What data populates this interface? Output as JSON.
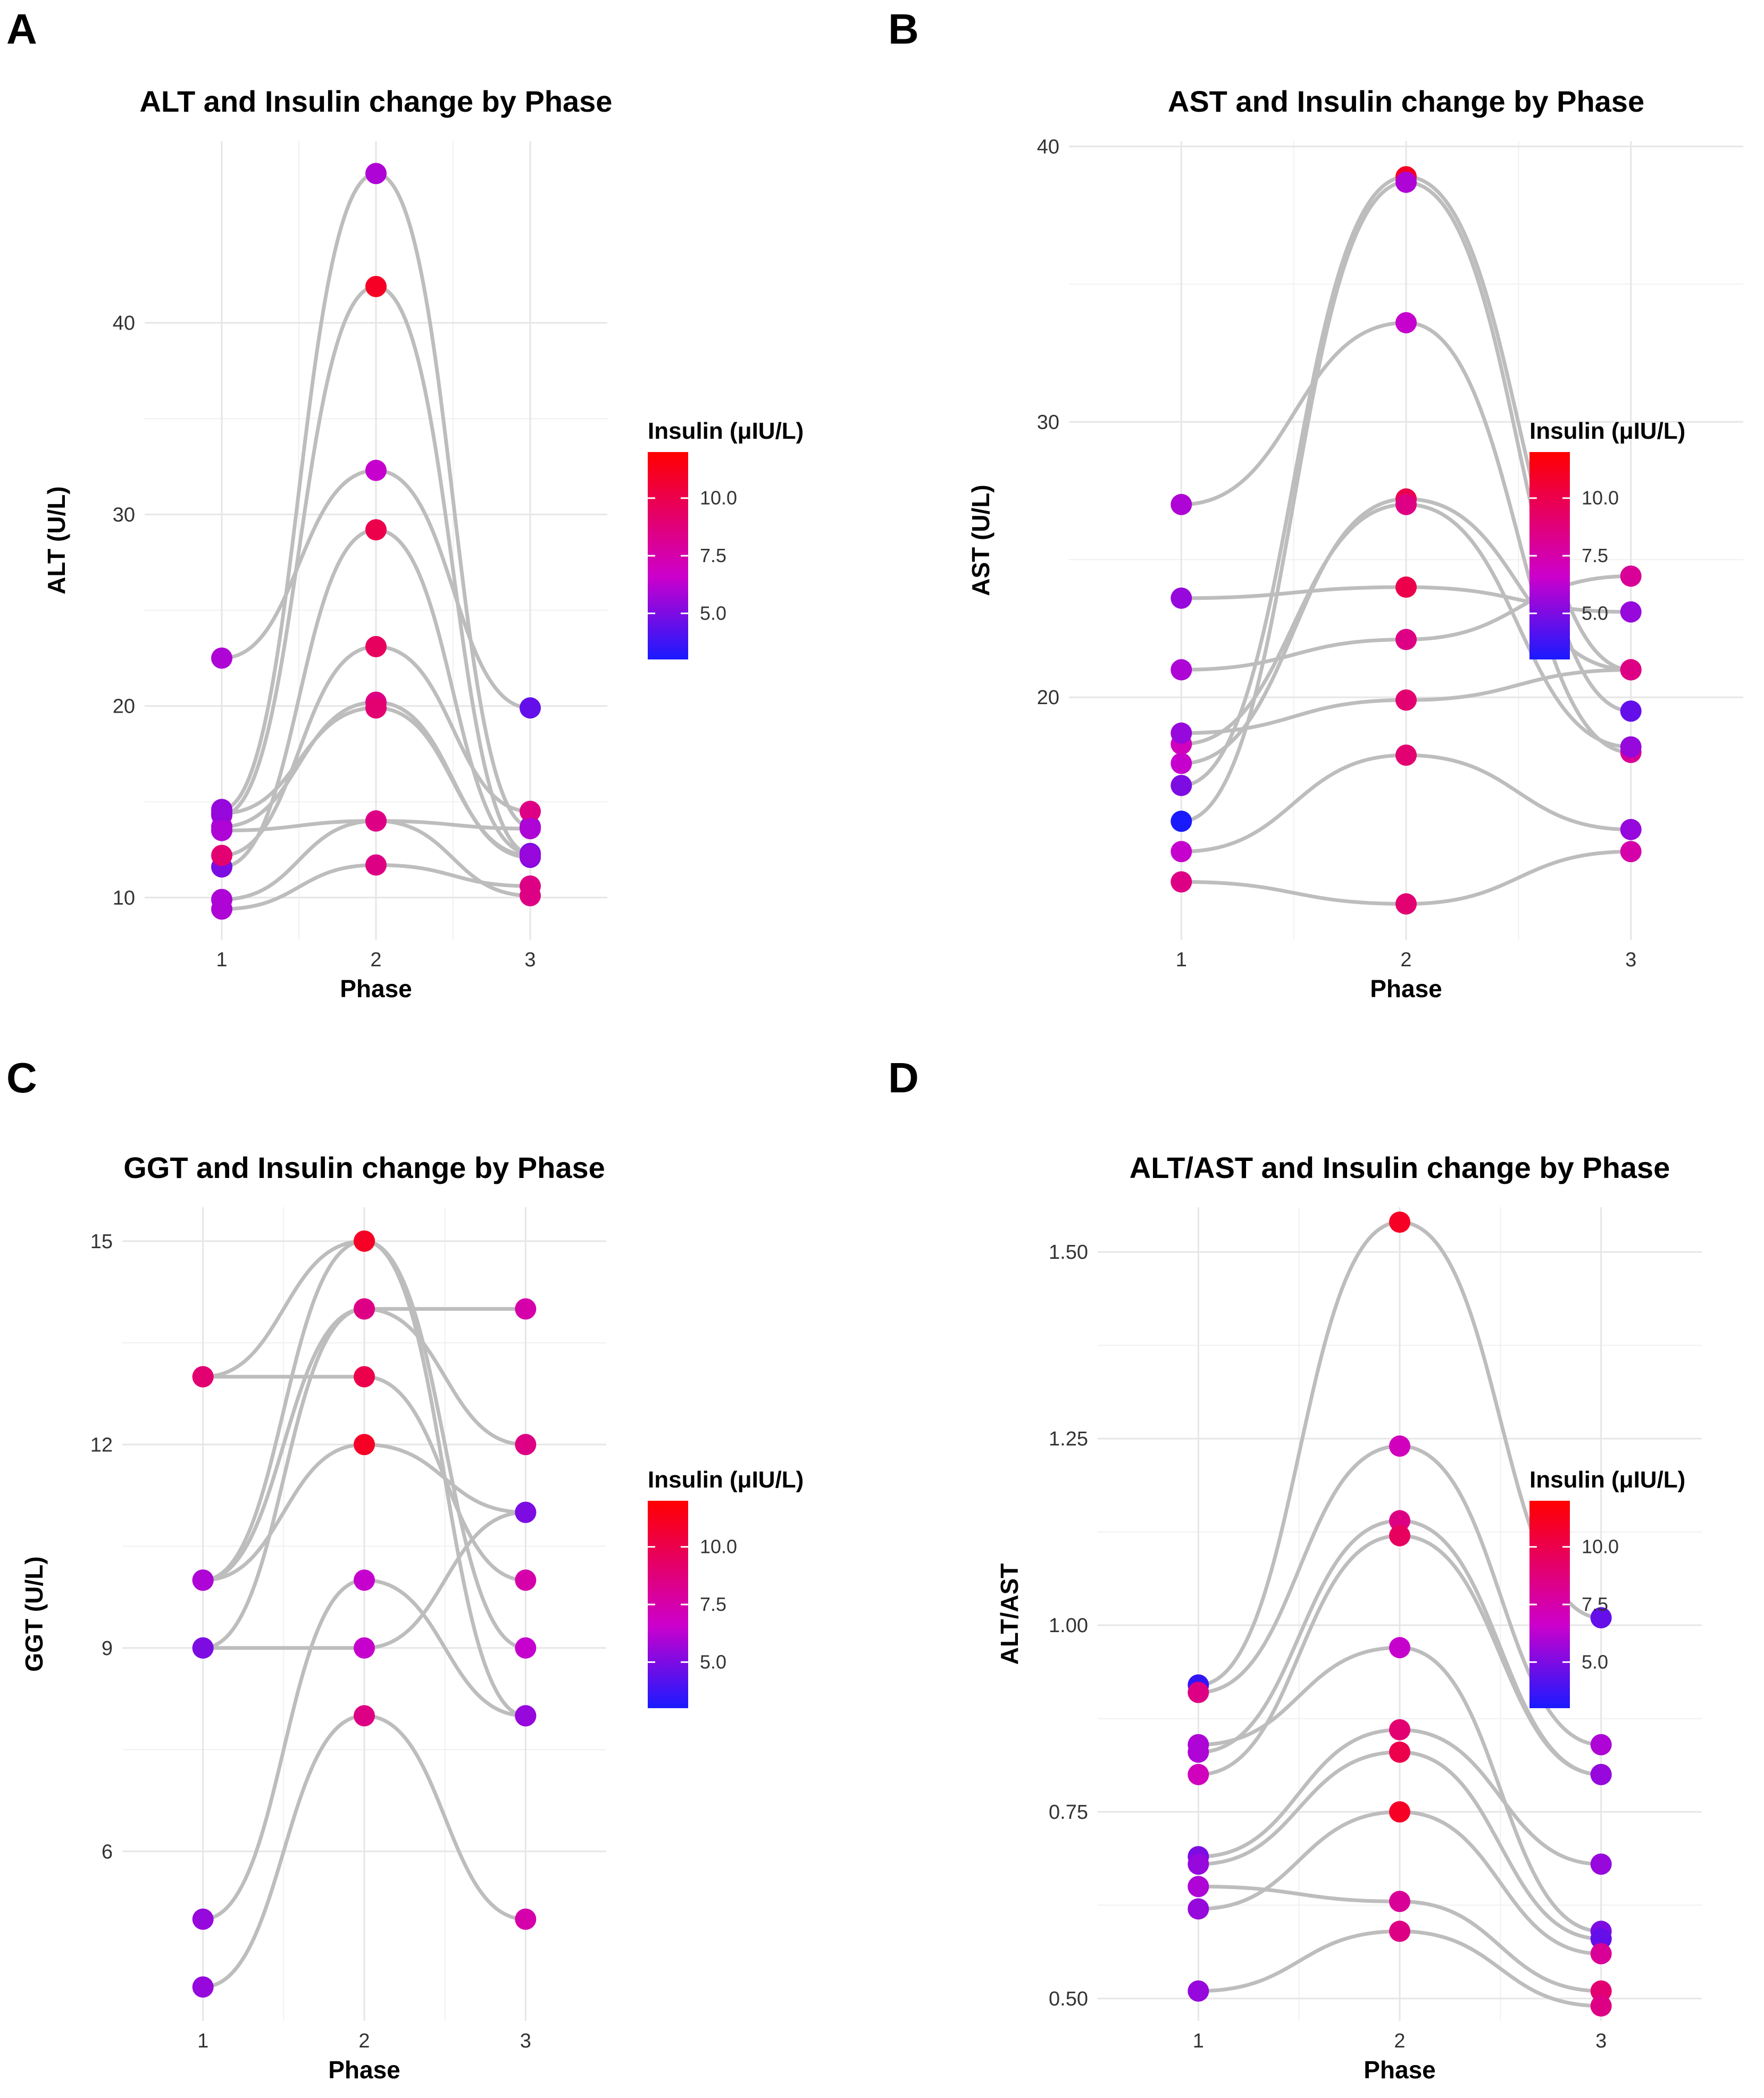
{
  "chart_data": [
    {
      "panel_label": "A",
      "type": "line",
      "title": "ALT and Insulin change by Phase",
      "xlabel": "Phase",
      "ylabel": "ALT (U/L)",
      "categories": [
        "1",
        "2",
        "3"
      ],
      "ylim": [
        7.8,
        49.5
      ],
      "yticks": [
        10,
        20,
        30,
        40
      ],
      "ytick_labels": [
        "10",
        "20",
        "30",
        "40"
      ],
      "legend": {
        "title": "Insulin (μIU/L)",
        "ticks": [
          "5.0",
          "7.5",
          "10.0"
        ],
        "tick_values": [
          5.0,
          7.5,
          10.0
        ],
        "range": [
          3.0,
          12.0
        ],
        "low_color": "#1a1aff",
        "mid_color": "#cc00cc",
        "high_color": "#ff0000"
      },
      "series": [
        {
          "values": [
            14.6,
            47.8,
            13.7
          ],
          "insulin": [
            5.5,
            6.0,
            5.5
          ]
        },
        {
          "values": [
            14.3,
            41.9,
            12.3
          ],
          "insulin": [
            6.0,
            11.0,
            5.5
          ]
        },
        {
          "values": [
            22.5,
            32.3,
            19.9
          ],
          "insulin": [
            6.0,
            6.5,
            4.5
          ]
        },
        {
          "values": [
            11.6,
            29.2,
            12.3
          ],
          "insulin": [
            5.0,
            10.0,
            5.0
          ]
        },
        {
          "values": [
            12.2,
            23.1,
            14.5
          ],
          "insulin": [
            9.0,
            9.5,
            8.5
          ]
        },
        {
          "values": [
            13.7,
            20.2,
            12.1
          ],
          "insulin": [
            6.0,
            8.5,
            5.0
          ]
        },
        {
          "values": [
            14.4,
            19.9,
            12.2
          ],
          "insulin": [
            5.5,
            9.0,
            5.5
          ]
        },
        {
          "values": [
            13.5,
            14.0,
            13.6
          ],
          "insulin": [
            6.0,
            8.5,
            6.0
          ]
        },
        {
          "values": [
            9.9,
            14.0,
            10.1
          ],
          "insulin": [
            6.0,
            8.5,
            8.5
          ]
        },
        {
          "values": [
            9.4,
            11.7,
            10.6
          ],
          "insulin": [
            6.0,
            8.5,
            8.5
          ]
        }
      ]
    },
    {
      "panel_label": "B",
      "type": "line",
      "title": "AST and Insulin change by Phase",
      "xlabel": "Phase",
      "ylabel": "AST (U/L)",
      "categories": [
        "1",
        "2",
        "3"
      ],
      "ylim": [
        11.2,
        40.2
      ],
      "yticks": [
        20,
        30,
        40
      ],
      "ytick_labels": [
        "20",
        "30",
        "40"
      ],
      "legend": {
        "title": "Insulin (μIU/L)",
        "ticks": [
          "5.0",
          "7.5",
          "10.0"
        ],
        "tick_values": [
          5.0,
          7.5,
          10.0
        ],
        "range": [
          3.0,
          12.0
        ],
        "low_color": "#1a1aff",
        "mid_color": "#cc00cc",
        "high_color": "#ff0000"
      },
      "series": [
        {
          "values": [
            16.8,
            38.9,
            21.0
          ],
          "insulin": [
            5.0,
            11.0,
            8.0
          ]
        },
        {
          "values": [
            15.5,
            38.7,
            19.5
          ],
          "insulin": [
            3.0,
            6.0,
            4.5
          ]
        },
        {
          "values": [
            27.0,
            33.6,
            18.0
          ],
          "insulin": [
            6.0,
            6.5,
            8.0
          ]
        },
        {
          "values": [
            17.6,
            27.2,
            21.0
          ],
          "insulin": [
            6.5,
            10.0,
            8.0
          ]
        },
        {
          "values": [
            18.3,
            27.0,
            18.2
          ],
          "insulin": [
            7.0,
            8.5,
            5.5
          ]
        },
        {
          "values": [
            21.0,
            22.1,
            24.4
          ],
          "insulin": [
            6.0,
            8.5,
            8.0
          ]
        },
        {
          "values": [
            23.6,
            24.0,
            23.1
          ],
          "insulin": [
            5.5,
            10.0,
            5.5
          ]
        },
        {
          "values": [
            18.7,
            19.9,
            21.0
          ],
          "insulin": [
            5.5,
            9.0,
            8.5
          ]
        },
        {
          "values": [
            14.4,
            17.9,
            15.2
          ],
          "insulin": [
            6.5,
            9.0,
            5.5
          ]
        },
        {
          "values": [
            13.3,
            12.5,
            14.4
          ],
          "insulin": [
            8.5,
            9.0,
            7.5
          ]
        }
      ]
    },
    {
      "panel_label": "C",
      "type": "line",
      "title": "GGT and Insulin change by Phase",
      "xlabel": "Phase",
      "ylabel": "GGT (U/L)",
      "categories": [
        "1",
        "2",
        "3"
      ],
      "ylim": [
        3.5,
        15.5
      ],
      "yticks": [
        6,
        9,
        12,
        15
      ],
      "ytick_labels": [
        "6",
        "9",
        "12",
        "15"
      ],
      "legend": {
        "title": "Insulin (μIU/L)",
        "ticks": [
          "5.0",
          "7.5",
          "10.0"
        ],
        "tick_values": [
          5.0,
          7.5,
          10.0
        ],
        "range": [
          3.0,
          12.0
        ],
        "low_color": "#1a1aff",
        "mid_color": "#cc00cc",
        "high_color": "#ff0000"
      },
      "series": [
        {
          "values": [
            13,
            15,
            9
          ],
          "insulin": [
            9.0,
            11.0,
            6.5
          ]
        },
        {
          "values": [
            13,
            13,
            10
          ],
          "insulin": [
            9.0,
            10.0,
            7.5
          ]
        },
        {
          "values": [
            10,
            15,
            8
          ],
          "insulin": [
            6.0,
            11.0,
            5.5
          ]
        },
        {
          "values": [
            10,
            14,
            12
          ],
          "insulin": [
            6.0,
            8.5,
            8.5
          ]
        },
        {
          "values": [
            9,
            14,
            14
          ],
          "insulin": [
            5.0,
            8.5,
            7.5
          ]
        },
        {
          "values": [
            10,
            12,
            11
          ],
          "insulin": [
            6.0,
            11.0,
            5.0
          ]
        },
        {
          "values": [
            9,
            9,
            11
          ],
          "insulin": [
            5.0,
            6.5,
            5.0
          ]
        },
        {
          "values": [
            5,
            10,
            8
          ],
          "insulin": [
            5.5,
            6.5,
            5.5
          ]
        },
        {
          "values": [
            4,
            8,
            5
          ],
          "insulin": [
            5.5,
            8.5,
            7.5
          ]
        }
      ]
    },
    {
      "panel_label": "D",
      "type": "line",
      "title": "ALT/AST and Insulin change by Phase",
      "xlabel": "Phase",
      "ylabel": "ALT/AST",
      "categories": [
        "1",
        "2",
        "3"
      ],
      "ylim": [
        0.47,
        1.56
      ],
      "yticks": [
        0.5,
        0.75,
        1.0,
        1.25,
        1.5
      ],
      "ytick_labels": [
        "0.50",
        "0.75",
        "1.00",
        "1.25",
        "1.50"
      ],
      "legend": {
        "title": "Insulin (μIU/L)",
        "ticks": [
          "5.0",
          "7.5",
          "10.0"
        ],
        "tick_values": [
          5.0,
          7.5,
          10.0
        ],
        "range": [
          3.0,
          12.0
        ],
        "low_color": "#1a1aff",
        "mid_color": "#cc00cc",
        "high_color": "#ff0000"
      },
      "series": [
        {
          "values": [
            0.92,
            1.54,
            1.01
          ],
          "insulin": [
            3.5,
            11.0,
            4.5
          ]
        },
        {
          "values": [
            0.91,
            1.24,
            0.84
          ],
          "insulin": [
            8.5,
            7.0,
            6.0
          ]
        },
        {
          "values": [
            0.83,
            1.14,
            0.8
          ],
          "insulin": [
            6.0,
            8.5,
            5.5
          ]
        },
        {
          "values": [
            0.8,
            1.12,
            0.8
          ],
          "insulin": [
            7.0,
            9.5,
            5.5
          ]
        },
        {
          "values": [
            0.84,
            0.97,
            0.59
          ],
          "insulin": [
            6.0,
            6.5,
            5.0
          ]
        },
        {
          "values": [
            0.69,
            0.86,
            0.68
          ],
          "insulin": [
            5.0,
            9.0,
            5.5
          ]
        },
        {
          "values": [
            0.68,
            0.83,
            0.58
          ],
          "insulin": [
            5.5,
            10.0,
            4.5
          ]
        },
        {
          "values": [
            0.62,
            0.75,
            0.56
          ],
          "insulin": [
            5.5,
            11.0,
            8.0
          ]
        },
        {
          "values": [
            0.65,
            0.63,
            0.51
          ],
          "insulin": [
            6.0,
            8.0,
            9.0
          ]
        },
        {
          "values": [
            0.51,
            0.59,
            0.49
          ],
          "insulin": [
            5.5,
            8.5,
            8.5
          ]
        }
      ]
    }
  ]
}
